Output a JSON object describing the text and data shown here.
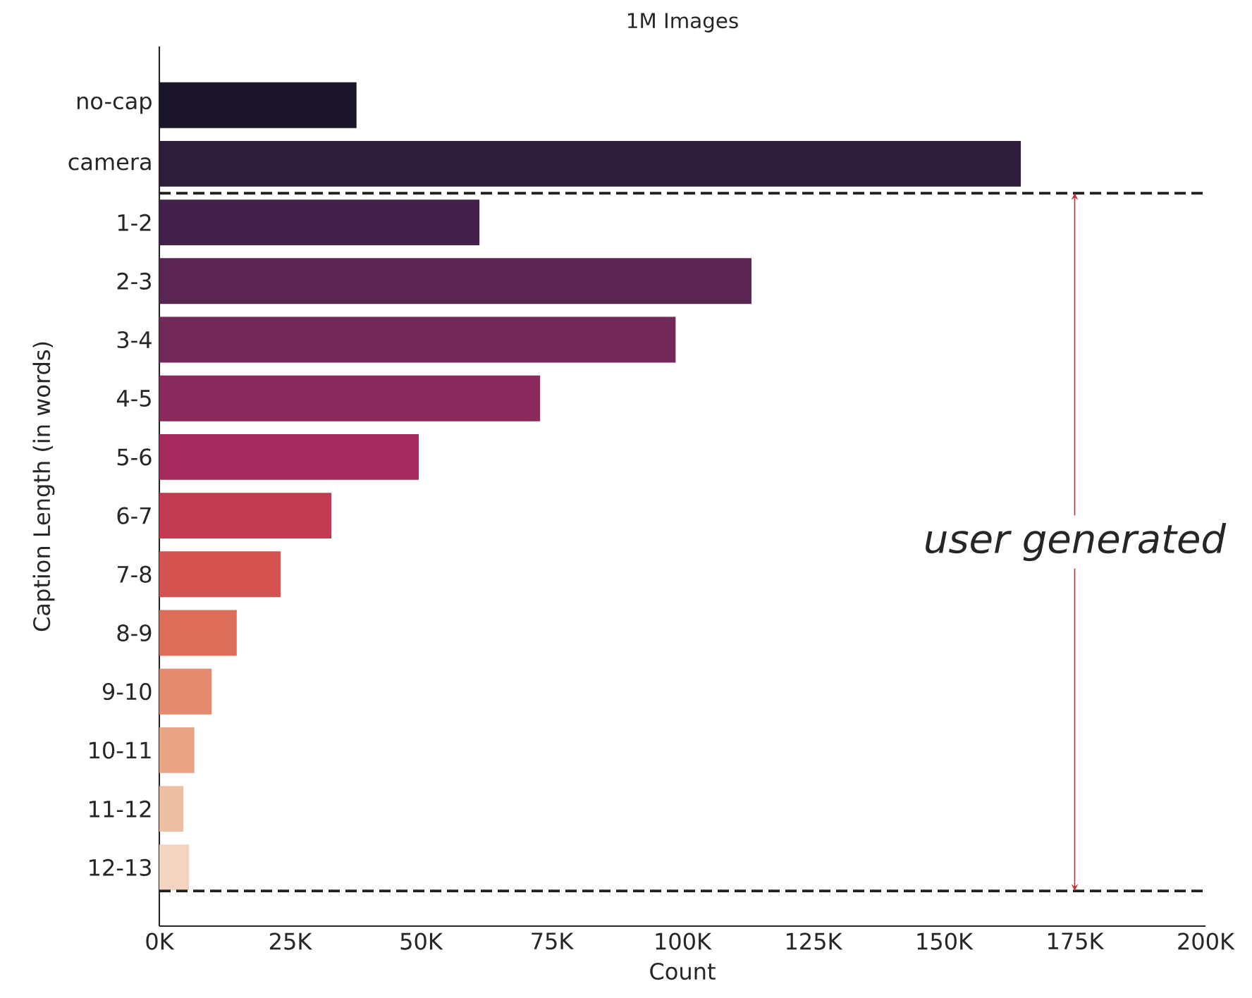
{
  "chart_data": {
    "type": "bar",
    "orientation": "horizontal",
    "title": "1M Images",
    "xlabel": "Count",
    "ylabel": "Caption Length (in words)",
    "categories": [
      "no-cap",
      "camera",
      "1-2",
      "2-3",
      "3-4",
      "4-5",
      "5-6",
      "6-7",
      "7-8",
      "8-9",
      "9-10",
      "10-11",
      "11-12",
      "12-13"
    ],
    "values": [
      37700,
      164700,
      61200,
      113200,
      98700,
      72800,
      49600,
      32900,
      23200,
      14800,
      10000,
      6700,
      4600,
      5700
    ],
    "colors": [
      "#1b1529",
      "#2e1d3b",
      "#43214a",
      "#5a2550",
      "#722859",
      "#8a2a5c",
      "#a62a5d",
      "#c13a50",
      "#d4524f",
      "#dd6e5a",
      "#e38a6f",
      "#e9a486",
      "#edbea2",
      "#f2d4c1"
    ],
    "xlim": [
      0,
      200000
    ],
    "xticks": [
      {
        "value": 0,
        "label": "0K"
      },
      {
        "value": 25000,
        "label": "25K"
      },
      {
        "value": 50000,
        "label": "50K"
      },
      {
        "value": 75000,
        "label": "75K"
      },
      {
        "value": 100000,
        "label": "100K"
      },
      {
        "value": 125000,
        "label": "125K"
      },
      {
        "value": 150000,
        "label": "150K"
      },
      {
        "value": 175000,
        "label": "175K"
      },
      {
        "value": 200000,
        "label": "200K"
      }
    ],
    "annotations": [
      "user generated"
    ]
  }
}
